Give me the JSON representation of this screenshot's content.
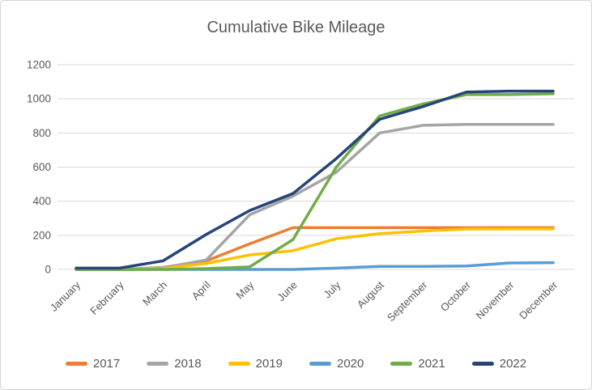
{
  "chart": {
    "title": "Cumulative Bike Mileage"
  },
  "chart_data": {
    "type": "line",
    "title": "Cumulative Bike Mileage",
    "categories": [
      "January",
      "February",
      "March",
      "April",
      "May",
      "June",
      "July",
      "August",
      "September",
      "October",
      "November",
      "December"
    ],
    "series": [
      {
        "name": "2017",
        "color": "#ED7D31",
        "values": [
          0,
          0,
          12,
          50,
          150,
          245,
          245,
          245,
          245,
          245,
          245,
          245
        ]
      },
      {
        "name": "2018",
        "color": "#A5A5A5",
        "values": [
          0,
          0,
          10,
          55,
          320,
          430,
          570,
          800,
          845,
          850,
          850,
          850
        ]
      },
      {
        "name": "2019",
        "color": "#FFC000",
        "values": [
          0,
          0,
          5,
          35,
          85,
          110,
          180,
          210,
          225,
          237,
          238,
          238
        ]
      },
      {
        "name": "2020",
        "color": "#5B9BD5",
        "values": [
          0,
          0,
          0,
          0,
          0,
          0,
          8,
          18,
          18,
          20,
          38,
          40
        ]
      },
      {
        "name": "2021",
        "color": "#70AD47",
        "values": [
          0,
          0,
          0,
          5,
          15,
          175,
          600,
          900,
          970,
          1025,
          1025,
          1030
        ]
      },
      {
        "name": "2022",
        "color": "#264478",
        "values": [
          8,
          8,
          50,
          205,
          345,
          445,
          650,
          880,
          955,
          1040,
          1045,
          1045
        ]
      }
    ],
    "xlabel": "",
    "ylabel": "",
    "ylim": [
      0,
      1200
    ],
    "yticks": [
      0,
      200,
      400,
      600,
      800,
      1000,
      1200
    ],
    "grid": true,
    "legend_position": "bottom",
    "axis_label_color": "#595959",
    "gridline_color": "#D9D9D9"
  }
}
